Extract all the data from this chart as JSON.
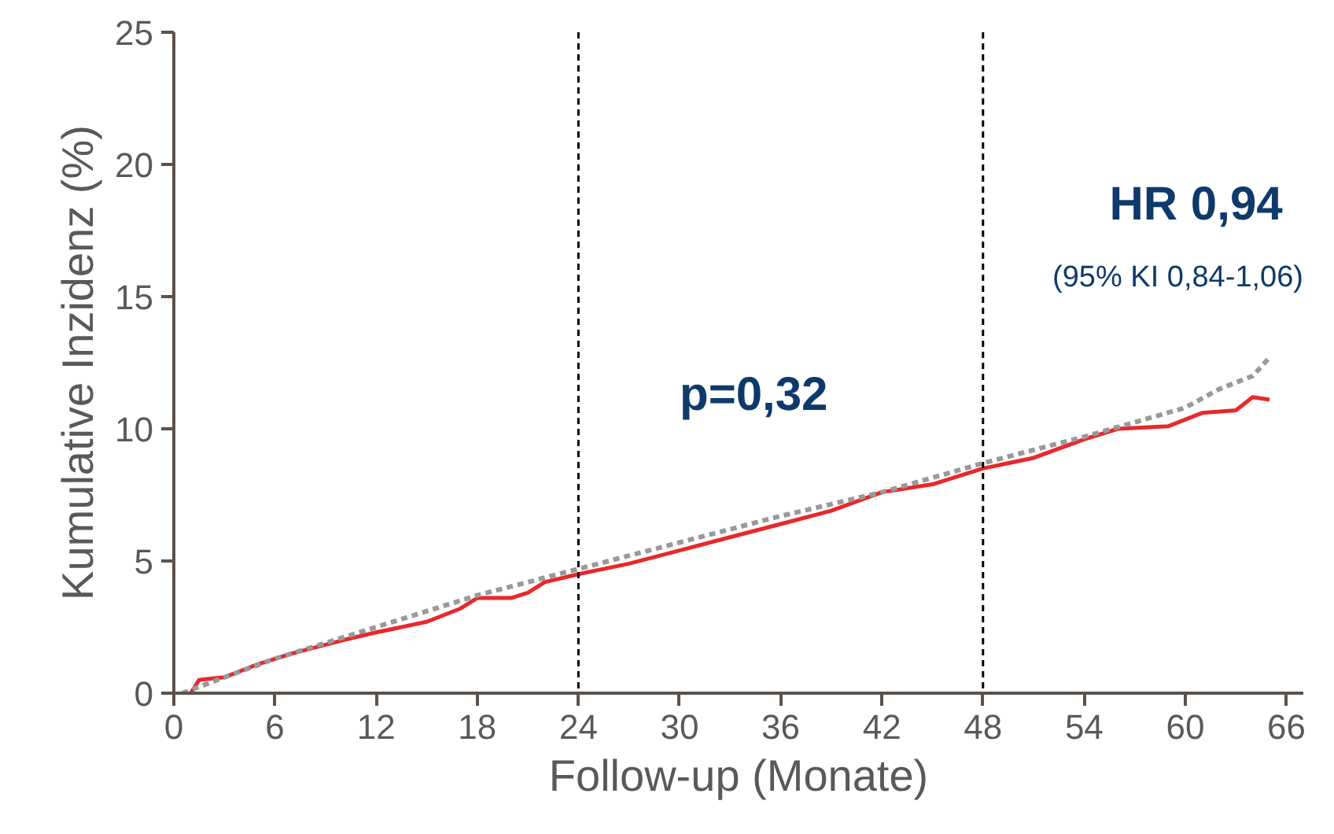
{
  "chart_data": {
    "type": "line",
    "xlabel": "Follow-up (Monate)",
    "ylabel": "Kumulative Inzidenz (%)",
    "xlim": [
      0,
      67
    ],
    "ylim": [
      0,
      25
    ],
    "xticks": [
      0,
      6,
      12,
      18,
      24,
      30,
      36,
      42,
      48,
      54,
      60,
      66
    ],
    "yticks": [
      0,
      5,
      10,
      15,
      20,
      25
    ],
    "grid": false,
    "marker": "none",
    "series": [
      {
        "color": "#e8282b",
        "line_style": "solid",
        "x": [
          1,
          1.5,
          3,
          5,
          7,
          10,
          12,
          15,
          17,
          18,
          20,
          21,
          22,
          24,
          27,
          30,
          33,
          36,
          39,
          42,
          45,
          48,
          51,
          54,
          56,
          59,
          61,
          63,
          64,
          65
        ],
        "values": [
          0,
          0.5,
          0.6,
          1.1,
          1.5,
          2,
          2.3,
          2.7,
          3.2,
          3.6,
          3.6,
          3.8,
          4.2,
          4.5,
          4.9,
          5.4,
          5.9,
          6.4,
          6.9,
          7.6,
          7.9,
          8.5,
          8.9,
          9.6,
          10,
          10.1,
          10.6,
          10.7,
          11.2,
          11.1
        ]
      },
      {
        "color": "#999999",
        "line_style": "dashed",
        "x": [
          0.5,
          3,
          6,
          12,
          18,
          24,
          30,
          36,
          42,
          48,
          54,
          60,
          62,
          64,
          65
        ],
        "values": [
          0,
          0.6,
          1.3,
          2.5,
          3.7,
          4.7,
          5.7,
          6.7,
          7.6,
          8.7,
          9.7,
          10.8,
          11.5,
          12,
          12.7
        ]
      }
    ],
    "ref_lines": [
      {
        "axis": "x",
        "value": 24,
        "color": "#000000",
        "line_style": "dashed"
      },
      {
        "axis": "x",
        "value": 48,
        "color": "#000000",
        "line_style": "dashed"
      }
    ],
    "annotations": [
      "p=0,32",
      "HR 0,94",
      "(95% KI 0,84-1,06)"
    ]
  }
}
